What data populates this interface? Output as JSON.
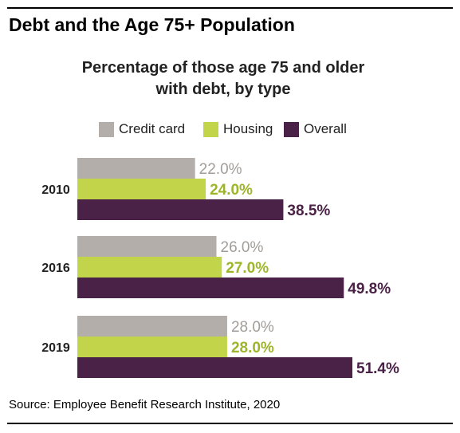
{
  "header": {
    "title": "Debt and the Age 75+ Population"
  },
  "footer": {
    "source": "Source: Employee Benefit Research Institute, 2020"
  },
  "colors": {
    "credit_card": "#b3aea9",
    "housing": "#c2d54a",
    "overall": "#4b2247",
    "label_credit_card": "#a29d98",
    "label_housing": "#9db52a",
    "label_overall": "#4b2247"
  },
  "chart_data": {
    "type": "bar",
    "orientation": "horizontal",
    "title": "Percentage of those age 75 and older with debt, by type",
    "title_lines": [
      "Percentage of those age 75 and older",
      "with debt, by type"
    ],
    "categories": [
      "2010",
      "2016",
      "2019"
    ],
    "series": [
      {
        "name": "Credit card",
        "values": [
          22.0,
          26.0,
          28.0
        ],
        "labels": [
          "22.0%",
          "26.0%",
          "28.0%"
        ]
      },
      {
        "name": "Housing",
        "values": [
          24.0,
          27.0,
          28.0
        ],
        "labels": [
          "24.0%",
          "27.0%",
          "28.0%"
        ]
      },
      {
        "name": "Overall",
        "values": [
          38.5,
          49.8,
          51.4
        ],
        "labels": [
          "38.5%",
          "49.8%",
          "51.4%"
        ]
      }
    ],
    "xlim": [
      0,
      51.4
    ],
    "legend_position": "top",
    "grid": false,
    "xlabel": "",
    "ylabel": ""
  }
}
